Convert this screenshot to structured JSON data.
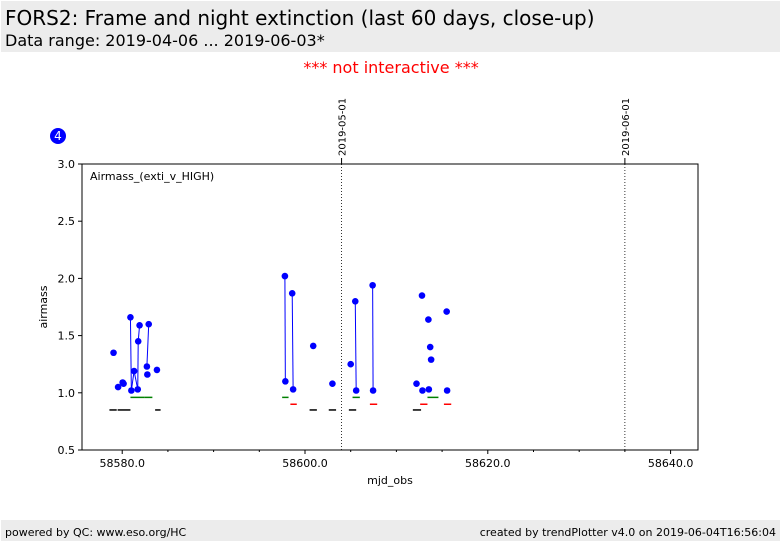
{
  "header": {
    "title": "FORS2: Frame and night extinction (last 60 days, close-up)",
    "subtitle": "Data range: 2019-04-06 ... 2019-06-03*"
  },
  "notice": "*** not interactive ***",
  "footer": {
    "left": "powered by QC: www.eso.org/HC",
    "right": "created by trendPlotter v4.0 on 2019-06-04T16:56:04"
  },
  "chart_data": {
    "type": "scatter",
    "panel_number": "4",
    "inset_label": "Airmass_(exti_v_HIGH)",
    "xlabel": "mjd_obs",
    "ylabel": "airmass",
    "xlim": [
      58575.6,
      58643.0
    ],
    "ylim": [
      0.5,
      3.0
    ],
    "x_ticks": [
      58580.0,
      58600.0,
      58620.0,
      58640.0
    ],
    "x_tick_labels": [
      "58580.0",
      "58600.0",
      "58620.0",
      "58640.0"
    ],
    "y_ticks": [
      0.5,
      1.0,
      1.5,
      2.0,
      2.5,
      3.0
    ],
    "y_tick_labels": [
      "0.5",
      "1.0",
      "1.5",
      "2.0",
      "2.5",
      "3.0"
    ],
    "grid": false,
    "date_markers": [
      {
        "x": 58604.0,
        "label": "2019-05-01"
      },
      {
        "x": 58635.0,
        "label": "2019-06-01"
      }
    ],
    "colors": {
      "points": "#0000ff",
      "night_marker_green": "#008000",
      "night_marker_red": "#ff0000",
      "night_marker_black": "#000000",
      "panel_badge": "#0000ff"
    },
    "series": [
      {
        "points": [
          [
            58579.05,
            1.35
          ],
          [
            58579.55,
            1.05
          ],
          [
            58580.05,
            1.09
          ],
          [
            58580.15,
            1.08
          ],
          [
            58580.9,
            1.66
          ],
          [
            58581.0,
            1.02
          ],
          [
            58581.3,
            1.19
          ],
          [
            58581.7,
            1.03
          ],
          [
            58581.75,
            1.45
          ],
          [
            58581.9,
            1.59
          ],
          [
            58582.7,
            1.23
          ],
          [
            58582.75,
            1.16
          ],
          [
            58582.9,
            1.6
          ],
          [
            58583.8,
            1.2
          ],
          [
            58597.8,
            2.02
          ],
          [
            58597.85,
            1.1
          ],
          [
            58598.6,
            1.87
          ],
          [
            58598.7,
            1.03
          ],
          [
            58600.9,
            1.41
          ],
          [
            58603.0,
            1.08
          ],
          [
            58605.0,
            1.25
          ],
          [
            58605.5,
            1.8
          ],
          [
            58605.6,
            1.02
          ],
          [
            58607.4,
            1.94
          ],
          [
            58607.45,
            1.02
          ],
          [
            58612.2,
            1.08
          ],
          [
            58612.8,
            1.85
          ],
          [
            58612.85,
            1.02
          ],
          [
            58613.5,
            1.64
          ],
          [
            58613.55,
            1.03
          ],
          [
            58613.7,
            1.4
          ],
          [
            58613.8,
            1.29
          ],
          [
            58615.5,
            1.71
          ],
          [
            58615.55,
            1.02
          ]
        ],
        "connections": [
          [
            58580.9,
            1.66,
            58581.0,
            1.02
          ],
          [
            58581.0,
            1.02,
            58581.3,
            1.19
          ],
          [
            58581.3,
            1.19,
            58581.7,
            1.03
          ],
          [
            58581.7,
            1.03,
            58581.75,
            1.45
          ],
          [
            58581.75,
            1.45,
            58581.9,
            1.59
          ],
          [
            58582.7,
            1.23,
            58582.9,
            1.6
          ],
          [
            58597.8,
            2.02,
            58597.85,
            1.1
          ],
          [
            58598.6,
            1.87,
            58598.7,
            1.03
          ],
          [
            58605.5,
            1.8,
            58605.6,
            1.02
          ],
          [
            58607.4,
            1.94,
            58607.45,
            1.02
          ]
        ]
      }
    ],
    "night_markers": [
      {
        "x1": 58578.6,
        "x2": 58579.4,
        "y": 0.85,
        "color": "black"
      },
      {
        "x1": 58579.5,
        "x2": 58580.9,
        "y": 0.85,
        "color": "black"
      },
      {
        "x1": 58580.9,
        "x2": 58582.4,
        "y": 0.96,
        "color": "green"
      },
      {
        "x1": 58582.4,
        "x2": 58583.3,
        "y": 0.96,
        "color": "green"
      },
      {
        "x1": 58583.6,
        "x2": 58584.2,
        "y": 0.85,
        "color": "black"
      },
      {
        "x1": 58597.5,
        "x2": 58598.2,
        "y": 0.96,
        "color": "green"
      },
      {
        "x1": 58598.4,
        "x2": 58599.1,
        "y": 0.9,
        "color": "red"
      },
      {
        "x1": 58600.5,
        "x2": 58601.3,
        "y": 0.85,
        "color": "black"
      },
      {
        "x1": 58602.6,
        "x2": 58603.4,
        "y": 0.85,
        "color": "black"
      },
      {
        "x1": 58604.8,
        "x2": 58605.6,
        "y": 0.85,
        "color": "black"
      },
      {
        "x1": 58605.2,
        "x2": 58606.0,
        "y": 0.96,
        "color": "green"
      },
      {
        "x1": 58607.1,
        "x2": 58607.9,
        "y": 0.9,
        "color": "red"
      },
      {
        "x1": 58611.8,
        "x2": 58612.7,
        "y": 0.85,
        "color": "black"
      },
      {
        "x1": 58612.6,
        "x2": 58613.4,
        "y": 0.9,
        "color": "red"
      },
      {
        "x1": 58613.4,
        "x2": 58614.6,
        "y": 0.96,
        "color": "green"
      },
      {
        "x1": 58615.2,
        "x2": 58616.0,
        "y": 0.9,
        "color": "red"
      }
    ]
  }
}
